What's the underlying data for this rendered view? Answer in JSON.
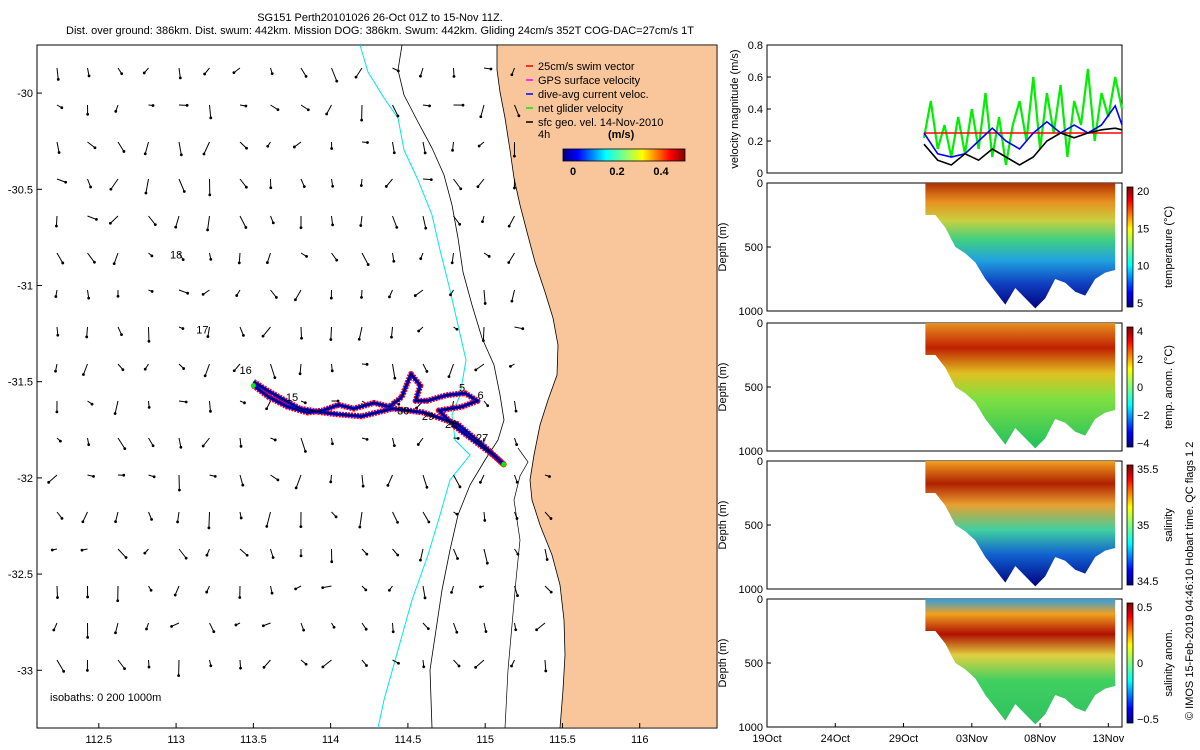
{
  "header": {
    "title": "SG151 Perth20101026 26-Oct 01Z to 15-Nov 11Z.",
    "subtitle": "Dist. over ground: 386km. Dist. swum: 442km. Mission DOG: 386km. Swum: 442km. Gliding 24cm/s 352T COG-DAC=27cm/s 1T"
  },
  "footer_vertical": "© IMOS 15-Feb-2019 04:46:10 Hobart time. QC flags 1  2",
  "colors": {
    "land": "#f9c69b",
    "swim_vector": "#ff0000",
    "gps_velocity": "#ff00ff",
    "current_veloc": "#0000ff",
    "glider_velocity": "#00ee00",
    "geo_vel": "#000000",
    "isobath": "#00e5ee"
  },
  "chart_data": [
    {
      "type": "scatter",
      "name": "map",
      "xlim": [
        112.1,
        116.5
      ],
      "ylim": [
        -33.3,
        -29.75
      ],
      "xticks": [
        "112.5",
        "113",
        "113.5",
        "114",
        "114.5",
        "115",
        "115.5",
        "116"
      ],
      "yticks": [
        "-30",
        "-30.5",
        "-31",
        "-31.5",
        "-32",
        "-32.5",
        "-33"
      ],
      "xtick_values": [
        112.5,
        113,
        113.5,
        114,
        114.5,
        115,
        115.5,
        116
      ],
      "ytick_values": [
        -30,
        -30.5,
        -31,
        -31.5,
        -32,
        -32.5,
        -33
      ],
      "legend": [
        {
          "label": "25cm/s swim vector",
          "color": "#ff0000"
        },
        {
          "label": "GPS surface velocity",
          "color": "#ff00ff"
        },
        {
          "label": "dive-avg current veloc.",
          "color": "#0000ff"
        },
        {
          "label": "net glider velocity",
          "color": "#00ee00"
        },
        {
          "label": "sfc geo. vel. 14-Nov-2010",
          "color": "#000000"
        }
      ],
      "legend_extra": "4h",
      "colorbar": {
        "label": "(m/s)",
        "ticks": [
          "0",
          "0.2",
          "0.4"
        ],
        "range": [
          0,
          0.5
        ]
      },
      "isobaths_label": "isobaths: 0   200  1000m",
      "track": [
        [
          113.5,
          -31.52
        ],
        [
          113.6,
          -31.58
        ],
        [
          113.72,
          -31.63
        ],
        [
          113.85,
          -31.66
        ],
        [
          113.95,
          -31.65
        ],
        [
          114.05,
          -31.62
        ],
        [
          114.15,
          -31.64
        ],
        [
          114.28,
          -31.61
        ],
        [
          114.38,
          -31.63
        ],
        [
          114.46,
          -31.58
        ],
        [
          114.52,
          -31.46
        ],
        [
          114.58,
          -31.52
        ],
        [
          114.55,
          -31.6
        ],
        [
          114.62,
          -31.6
        ],
        [
          114.75,
          -31.57
        ],
        [
          114.87,
          -31.56
        ],
        [
          114.95,
          -31.6
        ],
        [
          114.85,
          -31.63
        ],
        [
          114.7,
          -31.65
        ],
        [
          114.8,
          -31.73
        ],
        [
          114.95,
          -31.82
        ],
        [
          115.05,
          -31.88
        ],
        [
          115.12,
          -31.93
        ],
        [
          115.0,
          -31.84
        ],
        [
          114.82,
          -31.72
        ],
        [
          114.6,
          -31.66
        ],
        [
          114.4,
          -31.64
        ],
        [
          114.2,
          -31.68
        ],
        [
          114.05,
          -31.67
        ],
        [
          113.95,
          -31.66
        ],
        [
          113.8,
          -31.64
        ],
        [
          113.6,
          -31.55
        ],
        [
          113.5,
          -31.5
        ]
      ],
      "labels": [
        {
          "text": "16",
          "x": 113.45,
          "y": -31.46
        },
        {
          "text": "15",
          "x": 113.75,
          "y": -31.6
        },
        {
          "text": "30",
          "x": 114.47,
          "y": -31.67
        },
        {
          "text": "29",
          "x": 114.63,
          "y": -31.7
        },
        {
          "text": "28",
          "x": 114.78,
          "y": -31.74
        },
        {
          "text": "27",
          "x": 114.98,
          "y": -31.81
        },
        {
          "text": "5",
          "x": 114.85,
          "y": -31.55
        },
        {
          "text": "6",
          "x": 114.97,
          "y": -31.59
        },
        {
          "text": "18",
          "x": 113.0,
          "y": -30.86
        },
        {
          "text": "17",
          "x": 113.17,
          "y": -31.25
        }
      ]
    },
    {
      "type": "line",
      "name": "velocity-magnitude",
      "ylabel": "velocity magnitude (m/s)",
      "ylim": [
        0,
        0.8
      ],
      "yticks": [
        "0",
        "0.2",
        "0.4",
        "0.6",
        "0.8"
      ],
      "xlim": [
        15,
        41
      ],
      "series": [
        {
          "color": "#ff0000",
          "x": [
            26.5,
            41
          ],
          "values": [
            0.25,
            0.25
          ]
        },
        {
          "color": "#00ee00",
          "x": [
            26.5,
            27,
            27.5,
            28,
            28.5,
            29,
            29.5,
            30,
            30.5,
            31,
            31.5,
            32,
            32.5,
            33,
            33.5,
            34,
            34.5,
            35,
            35.5,
            36,
            36.5,
            37,
            37.5,
            38,
            38.5,
            39,
            39.5,
            40,
            40.5,
            41
          ],
          "values": [
            0.22,
            0.45,
            0.15,
            0.3,
            0.1,
            0.35,
            0.12,
            0.4,
            0.15,
            0.5,
            0.1,
            0.35,
            0.05,
            0.3,
            0.45,
            0.2,
            0.6,
            0.15,
            0.5,
            0.25,
            0.55,
            0.1,
            0.45,
            0.3,
            0.65,
            0.2,
            0.5,
            0.35,
            0.6,
            0.4
          ]
        },
        {
          "color": "#0000ff",
          "x": [
            26.5,
            27.5,
            28.5,
            29.5,
            30.5,
            31.5,
            32.5,
            33.5,
            34.5,
            35.5,
            36.5,
            37.5,
            38.5,
            39.5,
            40.5,
            41
          ],
          "values": [
            0.25,
            0.12,
            0.1,
            0.12,
            0.2,
            0.28,
            0.2,
            0.15,
            0.25,
            0.32,
            0.25,
            0.3,
            0.25,
            0.3,
            0.42,
            0.3
          ]
        },
        {
          "color": "#000000",
          "x": [
            26.5,
            27.5,
            28.5,
            29.5,
            30.5,
            31.5,
            32.5,
            33.5,
            34.5,
            35.5,
            36.5,
            37.5,
            38.5,
            39.5,
            40.5,
            41
          ],
          "values": [
            0.18,
            0.08,
            0.05,
            0.12,
            0.08,
            0.15,
            0.1,
            0.05,
            0.1,
            0.2,
            0.25,
            0.22,
            0.25,
            0.27,
            0.28,
            0.27
          ]
        }
      ]
    },
    {
      "type": "heatmap",
      "name": "temperature",
      "ylabel": "Depth (m)",
      "yticks": [
        "0",
        "500",
        "1000"
      ],
      "cbar_label": "temperature (°C)",
      "cbar_ticks": [
        "20",
        "15",
        "10",
        "5"
      ]
    },
    {
      "type": "heatmap",
      "name": "temp-anomaly",
      "ylabel": "Depth (m)",
      "yticks": [
        "0",
        "500",
        "1000"
      ],
      "cbar_label": "temp. anom. (°C)",
      "cbar_ticks": [
        "4",
        "2",
        "0",
        "−2",
        "−4"
      ]
    },
    {
      "type": "heatmap",
      "name": "salinity",
      "ylabel": "Depth (m)",
      "yticks": [
        "0",
        "500",
        "1000"
      ],
      "cbar_label": "salinity",
      "cbar_ticks": [
        "35.5",
        "35",
        "34.5"
      ]
    },
    {
      "type": "heatmap",
      "name": "salinity-anomaly",
      "ylabel": "Depth (m)",
      "yticks": [
        "0",
        "500",
        "1000"
      ],
      "cbar_label": "salinity anom.",
      "cbar_ticks": [
        "0.5",
        "0",
        "−0.5"
      ],
      "xticks": [
        "19Oct",
        "24Oct",
        "29Oct",
        "03Nov",
        "08Nov",
        "13Nov"
      ],
      "xtick_values": [
        19,
        24,
        29,
        34,
        39,
        44
      ]
    }
  ]
}
